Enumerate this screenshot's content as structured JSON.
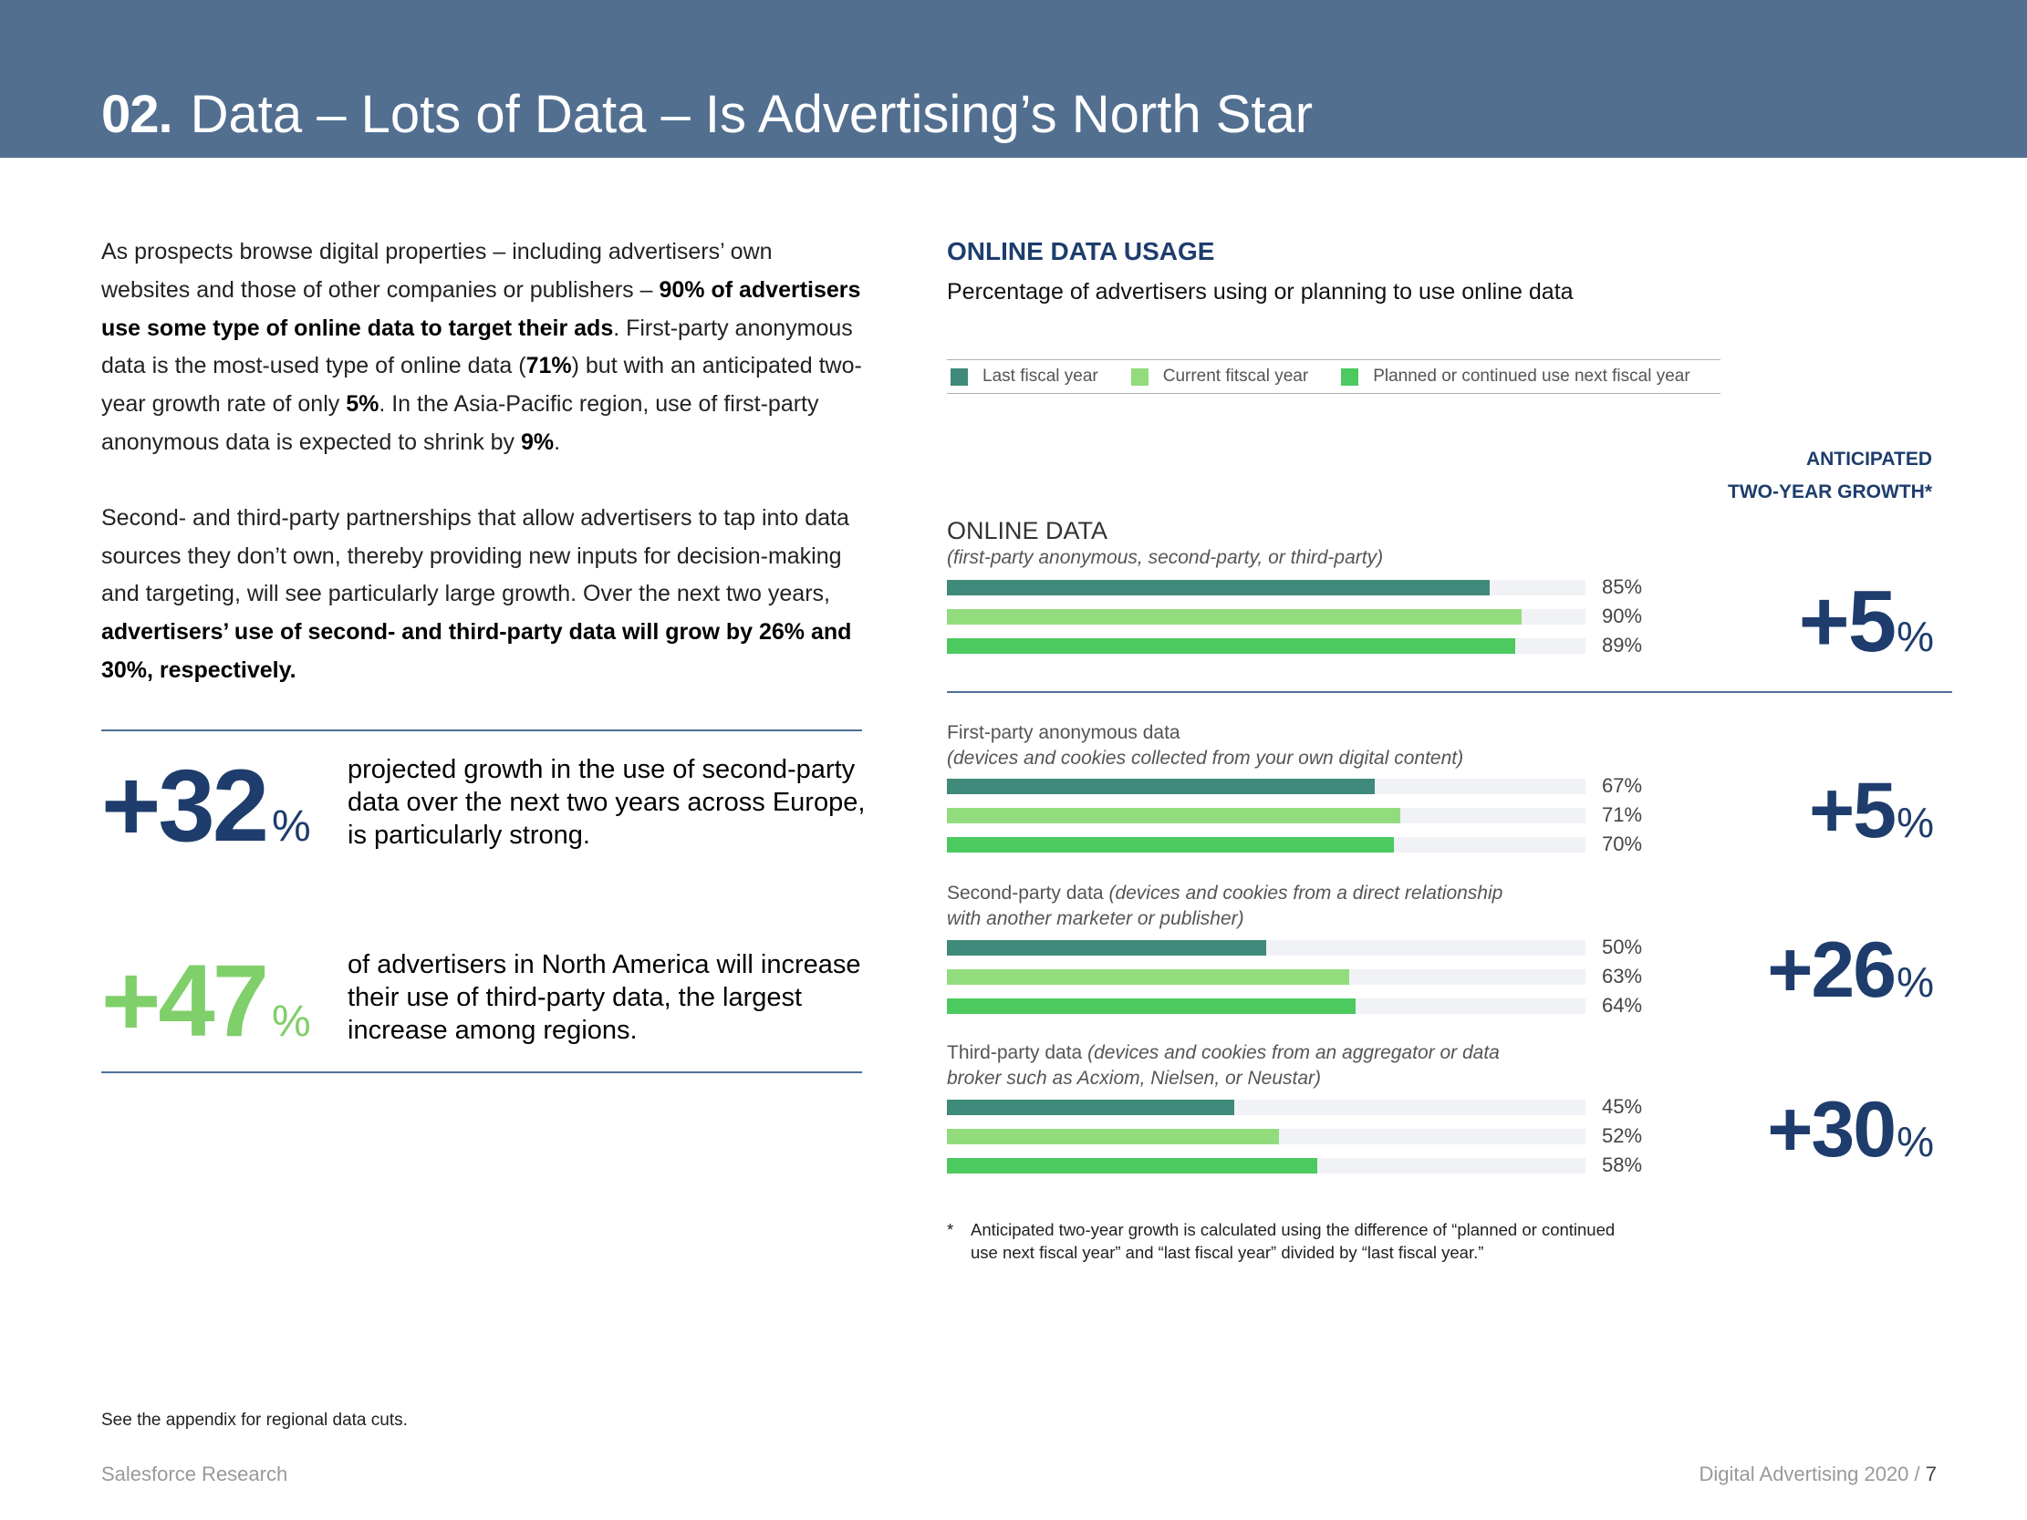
{
  "header": {
    "number": "02.",
    "title": "Data – Lots of Data – Is Advertising’s North Star"
  },
  "left": {
    "p1": [
      {
        "t": "As prospects browse digital properties – including advertisers’ own websites and those of other companies or publishers – ",
        "b": false
      },
      {
        "t": "90% of advertisers use some type of online data to target their ads",
        "b": true
      },
      {
        "t": ". First-party anonymous data is the most-used type of online data (",
        "b": false
      },
      {
        "t": "71%",
        "b": true
      },
      {
        "t": ") but with an anticipated two-year growth rate of only ",
        "b": false
      },
      {
        "t": "5%",
        "b": true
      },
      {
        "t": ". In the Asia-Pacific region, use of first-party anonymous data is expected to shrink by ",
        "b": false
      },
      {
        "t": "9%",
        "b": true
      },
      {
        "t": ".",
        "b": false
      }
    ],
    "p2": [
      {
        "t": "Second- and third-party partnerships that allow advertisers to tap into data sources they don’t own, thereby providing new inputs for decision-making and targeting, will see particularly large growth. Over the next two years, ",
        "b": false
      },
      {
        "t": "advertisers’ use of second- and third-party data will grow by 26% and 30%, respectively.",
        "b": true
      }
    ]
  },
  "stats": [
    {
      "value": "+32",
      "unit": "%",
      "text": "projected growth in the use of second-party data over the next two years across Europe, is particularly strong.",
      "color": "#1e3d6d"
    },
    {
      "value": "+47",
      "unit": "%",
      "text": "of advertisers in North America will increase their use of third-party data, the largest increase among regions.",
      "color": "#7fcf6a"
    }
  ],
  "usage": {
    "title": "ONLINE DATA USAGE",
    "subtitle": "Percentage of advertisers using or planning to use online data",
    "growth_header_1": "ANTICIPATED",
    "growth_header_2": "TWO-YEAR GROWTH*",
    "footnote_star": "*",
    "footnote": "Anticipated two-year growth is calculated using the difference of “planned or continued use next fiscal year” and “last fiscal year” divided by “last fiscal year.”"
  },
  "colors": {
    "last": "#3f8a7b",
    "current": "#93dc7e",
    "planned": "#4cc95f",
    "track": "#f1f2f6",
    "navy": "#1e3d6d",
    "header_bg": "#526f90"
  },
  "chart_data": {
    "type": "bar",
    "orientation": "horizontal",
    "xlim": [
      0,
      100
    ],
    "legend": [
      "Last fiscal year",
      "Current fitscal year",
      "Planned or continued use next fiscal year"
    ],
    "legend_placement": "top",
    "groups": [
      {
        "title": "ONLINE DATA",
        "subtitle": "(first-party anonymous, second-party, or third-party)",
        "values": [
          85,
          90,
          89
        ],
        "labels": [
          "85%",
          "90%",
          "89%"
        ],
        "growth": "+5",
        "growth_unit": "%"
      },
      {
        "title": "First-party anonymous data",
        "subtitle": "(devices and cookies collected from your own digital content)",
        "values": [
          67,
          71,
          70
        ],
        "labels": [
          "67%",
          "71%",
          "70%"
        ],
        "growth": "+5",
        "growth_unit": "%"
      },
      {
        "title": "Second-party data ",
        "subtitle": "(devices and cookies from a direct relationship with another marketer or publisher)",
        "values": [
          50,
          63,
          64
        ],
        "labels": [
          "50%",
          "63%",
          "64%"
        ],
        "growth": "+26",
        "growth_unit": "%"
      },
      {
        "title": "Third-party data ",
        "subtitle": "(devices and cookies from an aggregator or data broker such as Acxiom, Nielsen, or Neustar)",
        "values": [
          45,
          52,
          58
        ],
        "labels": [
          "45%",
          "52%",
          "58%"
        ],
        "growth": "+30",
        "growth_unit": "%"
      }
    ]
  },
  "footer": {
    "appendix": "See the appendix for regional data cuts.",
    "left": "Salesforce Research",
    "right": "Digital Advertising 2020",
    "sep": " / ",
    "page": "7"
  }
}
